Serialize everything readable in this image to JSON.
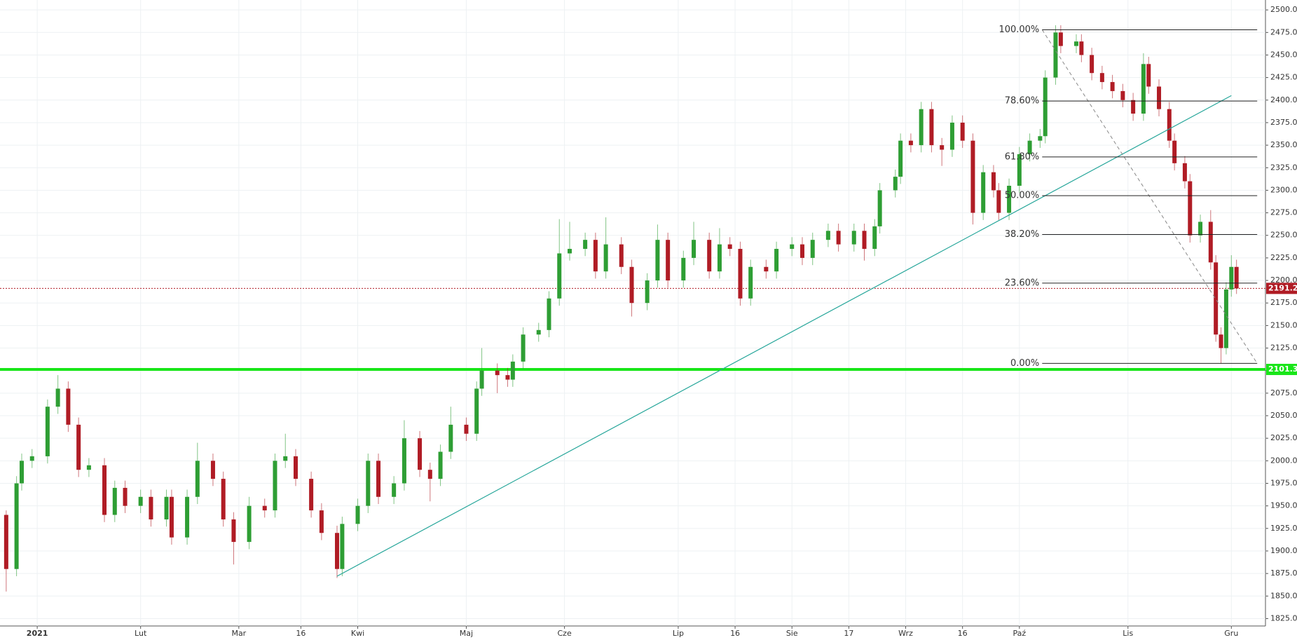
{
  "chart_data": {
    "type": "candlestick",
    "xlim": [
      -7.2,
      237.6
    ],
    "ylim": [
      1816.8,
      2511
    ],
    "grid": true,
    "up_color": "#2e9e34",
    "down_color": "#b01c25",
    "xticks": [
      {
        "value": 0,
        "label": "2021"
      },
      {
        "value": 20,
        "label": "Lut"
      },
      {
        "value": 39,
        "label": "Mar"
      },
      {
        "value": 51,
        "label": "16"
      },
      {
        "value": 62,
        "label": "Kwi"
      },
      {
        "value": 83,
        "label": "Maj"
      },
      {
        "value": 102,
        "label": "Cze"
      },
      {
        "value": 124,
        "label": "Lip"
      },
      {
        "value": 135,
        "label": "16"
      },
      {
        "value": 146,
        "label": "Sie"
      },
      {
        "value": 157,
        "label": "17"
      },
      {
        "value": 168,
        "label": "Wrz"
      },
      {
        "value": 179,
        "label": "16"
      },
      {
        "value": 190,
        "label": "Paź"
      },
      {
        "value": 211,
        "label": "Lis"
      },
      {
        "value": 231,
        "label": "Gru"
      }
    ],
    "yticks": [
      {
        "value": 1825,
        "label": "1825.0"
      },
      {
        "value": 1850,
        "label": "1850.0"
      },
      {
        "value": 1875,
        "label": "1875.0"
      },
      {
        "value": 1900,
        "label": "1900.0"
      },
      {
        "value": 1925,
        "label": "1925.0"
      },
      {
        "value": 1950,
        "label": "1950.0"
      },
      {
        "value": 1975,
        "label": "1975.0"
      },
      {
        "value": 2000,
        "label": "2000.0"
      },
      {
        "value": 2025,
        "label": "2025.0"
      },
      {
        "value": 2050,
        "label": "2050.0"
      },
      {
        "value": 2075,
        "label": "2075.0"
      },
      {
        "value": 2100,
        "label": "2100.0"
      },
      {
        "value": 2125,
        "label": "2125.0"
      },
      {
        "value": 2150,
        "label": "2150.0"
      },
      {
        "value": 2175,
        "label": "2175.0"
      },
      {
        "value": 2200,
        "label": "2200.0"
      },
      {
        "value": 2225,
        "label": "2225.0"
      },
      {
        "value": 2250,
        "label": "2250.0"
      },
      {
        "value": 2275,
        "label": "2275.0"
      },
      {
        "value": 2300,
        "label": "2300.0"
      },
      {
        "value": 2325,
        "label": "2325.0"
      },
      {
        "value": 2350,
        "label": "2350.0"
      },
      {
        "value": 2375,
        "label": "2375.0"
      },
      {
        "value": 2400,
        "label": "2400.0"
      },
      {
        "value": 2425,
        "label": "2425.0"
      },
      {
        "value": 2450,
        "label": "2450.0"
      },
      {
        "value": 2475,
        "label": "2475.0"
      },
      {
        "value": 2500,
        "label": "2500.0"
      }
    ],
    "candles": {
      "x": [
        -6,
        -4,
        -3,
        -1,
        2,
        4,
        6,
        8,
        10,
        13,
        15,
        17,
        20,
        22,
        25,
        26,
        29,
        31,
        34,
        36,
        38,
        41,
        44,
        46,
        48,
        50,
        53,
        55,
        58,
        59,
        62,
        64,
        66,
        69,
        71,
        74,
        76,
        78,
        80,
        83,
        85,
        86,
        89,
        91,
        92,
        94,
        97,
        99,
        101,
        103,
        106,
        108,
        110,
        113,
        115,
        118,
        120,
        122,
        125,
        127,
        130,
        132,
        134,
        136,
        138,
        141,
        143,
        146,
        148,
        150,
        153,
        155,
        158,
        160,
        162,
        163,
        166,
        167,
        169,
        171,
        173,
        175,
        177,
        179,
        181,
        183,
        185,
        186,
        188,
        190,
        192,
        194,
        195,
        197,
        198,
        201,
        202,
        204,
        206,
        208,
        210,
        212,
        214,
        215,
        217,
        219,
        220,
        222,
        223,
        225,
        227,
        228,
        229,
        230,
        231,
        232
      ],
      "open": [
        1940,
        1880,
        1975,
        2000,
        2005,
        2060,
        2080,
        2040,
        1990,
        1995,
        1940,
        1970,
        1950,
        1960,
        1935,
        1960,
        1915,
        1960,
        2000,
        1980,
        1935,
        1910,
        1950,
        1945,
        2000,
        2005,
        1980,
        1945,
        1920,
        1880,
        1930,
        1950,
        2000,
        1960,
        1975,
        2025,
        1990,
        1980,
        2010,
        2040,
        2030,
        2080,
        2100,
        2095,
        2090,
        2110,
        2140,
        2145,
        2180,
        2230,
        2235,
        2245,
        2210,
        2240,
        2215,
        2175,
        2200,
        2245,
        2200,
        2225,
        2245,
        2210,
        2240,
        2235,
        2180,
        2215,
        2210,
        2235,
        2240,
        2225,
        2245,
        2255,
        2240,
        2255,
        2235,
        2260,
        2300,
        2315,
        2355,
        2350,
        2390,
        2350,
        2345,
        2375,
        2355,
        2275,
        2320,
        2300,
        2275,
        2305,
        2340,
        2355,
        2360,
        2425,
        2475,
        2460,
        2465,
        2450,
        2430,
        2420,
        2410,
        2400,
        2385,
        2440,
        2415,
        2390,
        2355,
        2330,
        2310,
        2250,
        2265,
        2220,
        2140,
        2125,
        2190,
        2215
      ],
      "high": [
        1945,
        1983,
        2008,
        2013,
        2068,
        2095,
        2088,
        2048,
        2003,
        2003,
        1978,
        1978,
        1968,
        1968,
        1968,
        1968,
        1968,
        2020,
        2008,
        1988,
        1943,
        1960,
        1958,
        2008,
        2030,
        2013,
        1988,
        1953,
        1928,
        1938,
        1958,
        2008,
        2008,
        1983,
        2045,
        2033,
        1998,
        2018,
        2060,
        2048,
        2088,
        2125,
        2108,
        2103,
        2118,
        2148,
        2153,
        2188,
        2268,
        2265,
        2253,
        2253,
        2270,
        2248,
        2223,
        2208,
        2262,
        2253,
        2233,
        2265,
        2253,
        2258,
        2248,
        2243,
        2223,
        2223,
        2243,
        2248,
        2248,
        2253,
        2263,
        2263,
        2263,
        2263,
        2268,
        2308,
        2323,
        2363,
        2363,
        2398,
        2398,
        2358,
        2383,
        2383,
        2363,
        2328,
        2328,
        2308,
        2313,
        2348,
        2363,
        2368,
        2433,
        2483,
        2483,
        2473,
        2473,
        2458,
        2438,
        2428,
        2418,
        2408,
        2452,
        2448,
        2423,
        2398,
        2363,
        2338,
        2318,
        2273,
        2278,
        2228,
        2148,
        2198,
        2228,
        2223
      ],
      "low": [
        1855,
        1872,
        1967,
        1992,
        1997,
        2052,
        2032,
        1982,
        1982,
        1932,
        1932,
        1942,
        1942,
        1927,
        1927,
        1907,
        1907,
        1952,
        1972,
        1927,
        1885,
        1902,
        1937,
        1937,
        1992,
        1972,
        1937,
        1912,
        1870,
        1872,
        1922,
        1942,
        1952,
        1952,
        1967,
        1982,
        1955,
        1972,
        2002,
        2022,
        2022,
        2072,
        2075,
        2082,
        2082,
        2102,
        2132,
        2137,
        2172,
        2222,
        2227,
        2202,
        2202,
        2207,
        2160,
        2167,
        2192,
        2192,
        2192,
        2217,
        2202,
        2202,
        2227,
        2172,
        2172,
        2202,
        2202,
        2227,
        2217,
        2217,
        2237,
        2232,
        2232,
        2222,
        2227,
        2252,
        2292,
        2307,
        2342,
        2342,
        2342,
        2327,
        2337,
        2347,
        2262,
        2267,
        2292,
        2267,
        2267,
        2297,
        2332,
        2347,
        2352,
        2417,
        2452,
        2452,
        2442,
        2422,
        2412,
        2402,
        2392,
        2377,
        2377,
        2407,
        2382,
        2347,
        2322,
        2302,
        2242,
        2242,
        2212,
        2132,
        2108,
        2118,
        2182,
        2185
      ],
      "close": [
        1880,
        1975,
        2000,
        2005,
        2060,
        2080,
        2040,
        1990,
        1995,
        1940,
        1970,
        1950,
        1960,
        1935,
        1960,
        1915,
        1960,
        2000,
        1980,
        1935,
        1910,
        1950,
        1945,
        2000,
        2005,
        1980,
        1945,
        1920,
        1880,
        1930,
        1950,
        2000,
        1960,
        1975,
        2025,
        1990,
        1980,
        2010,
        2040,
        2030,
        2080,
        2100,
        2095,
        2090,
        2110,
        2140,
        2145,
        2180,
        2230,
        2235,
        2245,
        2210,
        2240,
        2215,
        2175,
        2200,
        2245,
        2200,
        2225,
        2245,
        2210,
        2240,
        2235,
        2180,
        2215,
        2210,
        2235,
        2240,
        2225,
        2245,
        2255,
        2240,
        2255,
        2235,
        2260,
        2300,
        2315,
        2355,
        2350,
        2390,
        2350,
        2345,
        2375,
        2355,
        2275,
        2320,
        2300,
        2275,
        2305,
        2340,
        2355,
        2360,
        2425,
        2475,
        2460,
        2465,
        2450,
        2430,
        2420,
        2410,
        2400,
        2385,
        2440,
        2415,
        2390,
        2355,
        2330,
        2310,
        2250,
        2265,
        2220,
        2140,
        2125,
        2190,
        2215,
        2191.2
      ]
    },
    "horizontal_lines": [
      {
        "value": 2101.3,
        "color": "#19e619",
        "style": "solid"
      },
      {
        "value": 2191.2,
        "color": "#b01c25",
        "style": "dotted"
      }
    ],
    "trendline": {
      "x": [
        58,
        231
      ],
      "y": [
        1872,
        2405
      ],
      "color": "#26a69a"
    },
    "fib_x": [
      194.4,
      236
    ],
    "fib_diagonal": {
      "x": [
        194.4,
        236
      ],
      "y": [
        2478,
        2108
      ]
    },
    "fib_levels": [
      {
        "label": "100.00%",
        "price": 2478
      },
      {
        "label": "78.60%",
        "price": 2399
      },
      {
        "label": "61.80%",
        "price": 2337
      },
      {
        "label": "50.00%",
        "price": 2294
      },
      {
        "label": "38.20%",
        "price": 2251
      },
      {
        "label": "23.60%",
        "price": 2197
      },
      {
        "label": "0.00%",
        "price": 2108
      }
    ]
  }
}
